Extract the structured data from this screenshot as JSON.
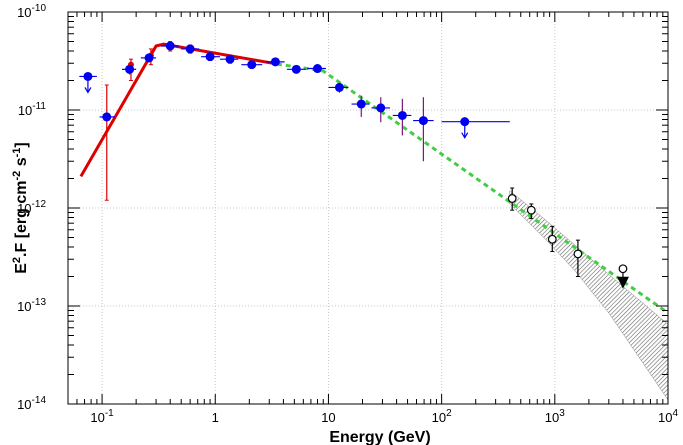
{
  "chart_data": {
    "type": "scatter",
    "title": "",
    "xlabel": "Energy (GeV)",
    "ylabel": "E².F [erg cm⁻² s⁻¹]",
    "xscale": "log",
    "yscale": "log",
    "xlim": [
      0.05,
      10000
    ],
    "ylim": [
      1e-14,
      1e-10
    ],
    "grid": true,
    "x_ticks": [
      {
        "value": 0.1,
        "base": "10",
        "exp": "-1"
      },
      {
        "value": 1,
        "base": "1",
        "exp": ""
      },
      {
        "value": 10,
        "base": "10",
        "exp": ""
      },
      {
        "value": 100,
        "base": "10",
        "exp": "2"
      },
      {
        "value": 1000,
        "base": "10",
        "exp": "3"
      },
      {
        "value": 10000,
        "base": "10",
        "exp": "4"
      }
    ],
    "y_ticks": [
      {
        "value": 1e-14,
        "base": "10",
        "exp": "-14"
      },
      {
        "value": 1e-13,
        "base": "10",
        "exp": "-13"
      },
      {
        "value": 1e-12,
        "base": "10",
        "exp": "-12"
      },
      {
        "value": 1e-11,
        "base": "10",
        "exp": "-11"
      },
      {
        "value": 1e-10,
        "base": "10",
        "exp": "-10"
      }
    ],
    "fit_band": {
      "color": "#888888",
      "x": [
        400,
        800,
        1500,
        3000,
        10000
      ],
      "upper": [
        1.5e-12,
        7.8e-13,
        4.2e-13,
        2.1e-13,
        6.5e-14
      ],
      "lower": [
        1.1e-12,
        5e-13,
        2.3e-13,
        8.5e-14,
        1.1e-14
      ]
    },
    "lines": [
      {
        "style": "solid",
        "color": "#dd0000",
        "width": 3,
        "x": [
          0.065,
          0.3,
          0.35,
          3.5
        ],
        "y": [
          2.1e-12,
          4.5e-11,
          4.7e-11,
          2.95e-11
        ]
      },
      {
        "style": "dashed",
        "color": "#44cc44",
        "width": 3,
        "x": [
          3.5,
          9,
          10000
        ],
        "y": [
          2.95e-11,
          2.5e-11,
          8.5e-14
        ]
      }
    ],
    "points_red": {
      "color": "#dd0000",
      "x": [
        0.11,
        0.18,
        0.27,
        0.4,
        0.6,
        0.9,
        1.35
      ],
      "y": [
        8.5e-12,
        2.9e-11,
        3.6e-11,
        4.5e-11,
        4.2e-11,
        3.6e-11,
        3.3e-11
      ],
      "ylo": [
        1.2e-12,
        2e-11,
        2.9e-11,
        4e-11,
        3.8e-11,
        3.2e-11,
        3e-11
      ],
      "yhi": [
        1.8e-11,
        3.3e-11,
        4.2e-11,
        5e-11,
        4.6e-11,
        3.9e-11,
        3.6e-11
      ]
    },
    "points_blue": {
      "color": "#0000ee",
      "x": [
        0.075,
        0.11,
        0.175,
        0.26,
        0.4,
        0.6,
        0.9,
        1.35,
        2.1,
        3.4,
        5.2,
        8,
        12.5,
        19.5,
        29,
        45,
        69,
        160
      ],
      "y": [
        2.2e-11,
        8.5e-12,
        2.6e-11,
        3.4e-11,
        4.5e-11,
        4.2e-11,
        3.5e-11,
        3.3e-11,
        2.9e-11,
        3.1e-11,
        2.6e-11,
        2.65e-11,
        1.7e-11,
        1.15e-11,
        1.05e-11,
        8.8e-12,
        7.8e-12,
        7.6e-12
      ],
      "xlo": [
        0.063,
        0.095,
        0.15,
        0.22,
        0.33,
        0.5,
        0.75,
        1.1,
        1.7,
        2.8,
        4.3,
        6.5,
        10,
        16,
        24,
        37,
        56,
        100
      ],
      "xhi": [
        0.09,
        0.13,
        0.2,
        0.3,
        0.48,
        0.72,
        1.1,
        1.6,
        2.6,
        4.1,
        6.3,
        9.5,
        15,
        23,
        35,
        54,
        85,
        400
      ],
      "ylo": [
        null,
        null,
        2.3e-11,
        3.2e-11,
        4.2e-11,
        3.9e-11,
        3.2e-11,
        3e-11,
        2.7e-11,
        2.9e-11,
        2.4e-11,
        2.45e-11,
        1.5e-11,
        8.5e-12,
        7.5e-12,
        5.5e-12,
        3e-12,
        null
      ],
      "yhi": [
        null,
        null,
        3e-11,
        3.7e-11,
        4.8e-11,
        4.5e-11,
        3.8e-11,
        3.6e-11,
        3.1e-11,
        3.3e-11,
        2.8e-11,
        2.85e-11,
        1.9e-11,
        1.4e-11,
        1.35e-11,
        1.3e-11,
        1.35e-11,
        null
      ],
      "upper_limit": [
        true,
        false,
        false,
        false,
        false,
        false,
        false,
        false,
        false,
        false,
        false,
        false,
        false,
        false,
        false,
        false,
        false,
        true
      ]
    },
    "points_open": {
      "color": "#000000",
      "x": [
        420,
        620,
        950,
        1600,
        4000
      ],
      "y": [
        1.25e-12,
        9.5e-13,
        4.8e-13,
        3.4e-13,
        2.4e-13
      ],
      "ylo": [
        9.5e-13,
        7.8e-13,
        3.6e-13,
        2e-13,
        null
      ],
      "yhi": [
        1.6e-12,
        1.1e-12,
        6.5e-13,
        4.7e-13,
        null
      ],
      "upper_limit": [
        false,
        false,
        false,
        false,
        true
      ]
    }
  }
}
